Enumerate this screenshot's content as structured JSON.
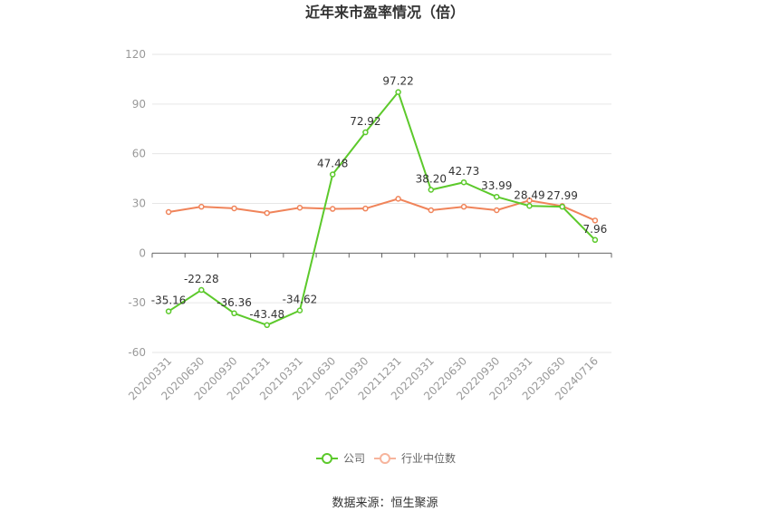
{
  "chart_data": {
    "type": "line",
    "title": "近年来市盈率情况（倍）",
    "categories": [
      "20200331",
      "20200630",
      "20200930",
      "20201231",
      "20210331",
      "20210630",
      "20210930",
      "20211231",
      "20220331",
      "20220630",
      "20220930",
      "20230331",
      "20230630",
      "20240716"
    ],
    "series": [
      {
        "name": "公司",
        "color": "#5cc92b",
        "values": [
          -35.16,
          -22.28,
          -36.36,
          -43.48,
          -34.62,
          47.48,
          72.92,
          97.22,
          38.2,
          42.73,
          33.99,
          28.49,
          27.99,
          7.96
        ],
        "labels": [
          "-35.16",
          "-22.28",
          "-36.36",
          "-43.48",
          "-34.62",
          "47.48",
          "72.92",
          "97.22",
          "38.20",
          "42.73",
          "33.99",
          "28.49",
          "27.99",
          "7.96"
        ]
      },
      {
        "name": "行业中位数",
        "color": "#f0845a",
        "values": [
          24.8,
          28.0,
          27.0,
          24.2,
          27.4,
          26.7,
          26.9,
          32.8,
          25.9,
          28.0,
          25.9,
          31.8,
          28.4,
          19.7
        ]
      }
    ],
    "ylim": [
      -60,
      120
    ],
    "yticks": [
      "120",
      "90",
      "60",
      "30",
      "0",
      "-30",
      "-60"
    ],
    "ytick_values": [
      120,
      90,
      60,
      30,
      0,
      -30,
      -60
    ],
    "grid": true,
    "legend": "bottom-center"
  },
  "source_text": "数据来源：恒生聚源"
}
